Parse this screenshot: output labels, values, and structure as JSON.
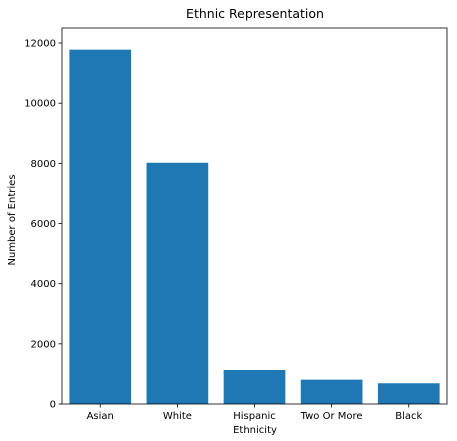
{
  "chart_data": {
    "type": "bar",
    "title": "Ethnic Representation",
    "xlabel": "Ethnicity",
    "ylabel": "Number of Entries",
    "categories": [
      "Asian",
      "White",
      "Hispanic",
      "Two Or More",
      "Black"
    ],
    "values": [
      11780,
      8020,
      1130,
      810,
      690
    ],
    "ylim": [
      0,
      12500
    ],
    "yticks": [
      0,
      2000,
      4000,
      6000,
      8000,
      10000,
      12000
    ],
    "grid": false,
    "legend": "none",
    "colors": {
      "bar": "#1f77b4",
      "axis": "#000000",
      "background": "#ffffff"
    }
  }
}
